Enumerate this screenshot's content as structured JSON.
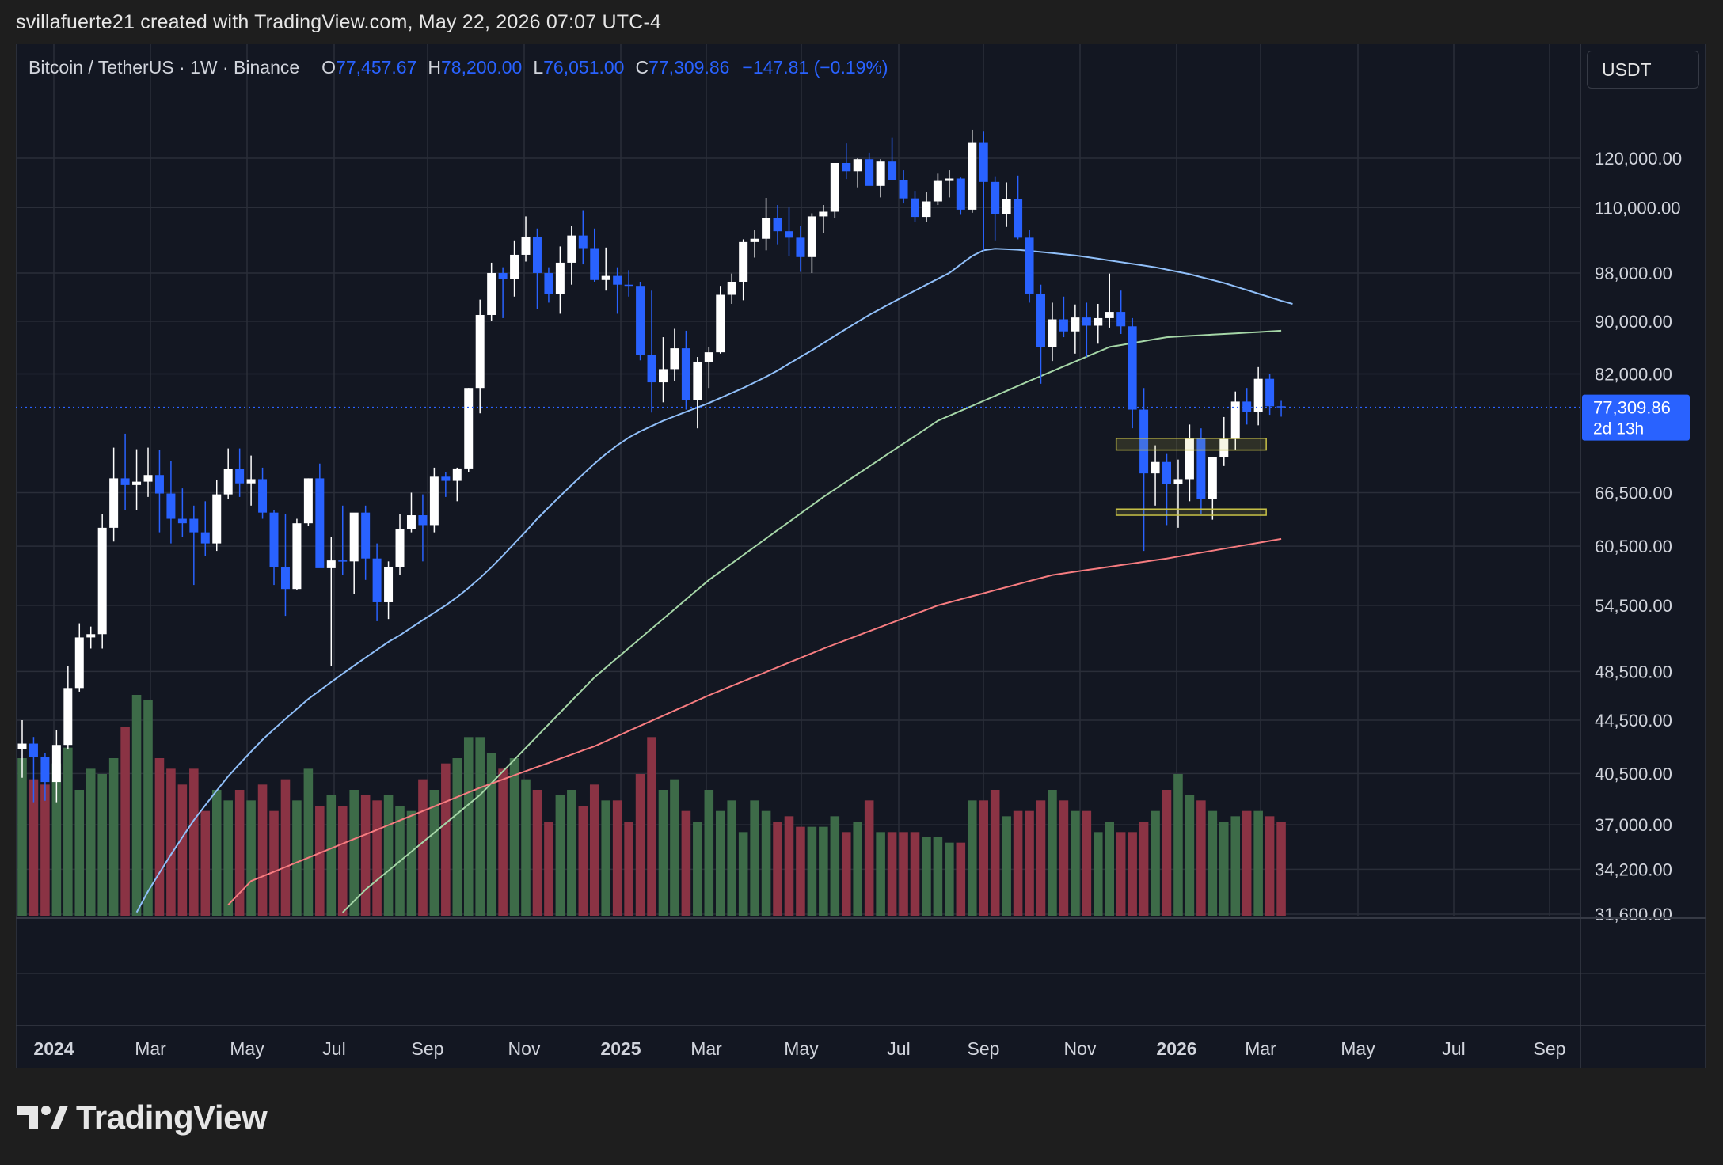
{
  "header": {
    "credit": "svillafuerte21 created with TradingView.com, May 22, 2026 07:07 UTC-4"
  },
  "legend": {
    "symbol": "Bitcoin / TetherUS · 1W · Binance",
    "o_label": "O",
    "o_value": "77,457.67",
    "h_label": "H",
    "h_value": "78,200.00",
    "l_label": "L",
    "l_value": "76,051.00",
    "c_label": "C",
    "c_value": "77,309.86",
    "change": "−147.81 (−0.19%)"
  },
  "currency_button": {
    "label": "USDT"
  },
  "last_price": {
    "value": "77,309.86",
    "countdown": "2d 13h"
  },
  "colors": {
    "background": "#131722",
    "up_candle": "#ffffff",
    "down_candle": "#2962ff",
    "volume_up": "#3d6b48",
    "volume_down": "#8a3344",
    "ma_blue": "#90bff9",
    "ma_green": "#a5d6a7",
    "ma_red": "#f77c80",
    "box": "#c9c247"
  },
  "logo": {
    "text": "TradingView",
    "icon": "tradingview-logo-icon"
  },
  "chart_data": {
    "type": "candlestick",
    "y_scale": "log",
    "ylim": [
      31600,
      135000
    ],
    "y_ticks": [
      "120,000.00",
      "110,000.00",
      "98,000.00",
      "90,000.00",
      "82,000.00",
      "66,500.00",
      "60,500.00",
      "54,500.00",
      "48,500.00",
      "44,500.00",
      "40,500.00",
      "37,000.00",
      "34,200.00",
      "31,600.00"
    ],
    "x_ticks": [
      {
        "label": "2024",
        "bold": true
      },
      {
        "label": "Mar",
        "bold": false
      },
      {
        "label": "May",
        "bold": false
      },
      {
        "label": "Jul",
        "bold": false
      },
      {
        "label": "Sep",
        "bold": false
      },
      {
        "label": "Nov",
        "bold": false
      },
      {
        "label": "2025",
        "bold": true
      },
      {
        "label": "Mar",
        "bold": false
      },
      {
        "label": "May",
        "bold": false
      },
      {
        "label": "Jul",
        "bold": false
      },
      {
        "label": "Sep",
        "bold": false
      },
      {
        "label": "Nov",
        "bold": false
      },
      {
        "label": "2026",
        "bold": true
      },
      {
        "label": "Mar",
        "bold": false
      },
      {
        "label": "May",
        "bold": false
      },
      {
        "label": "Jul",
        "bold": false
      },
      {
        "label": "Sep",
        "bold": false
      }
    ],
    "grid": true,
    "candles_weekly": [
      [
        42300,
        44500,
        40200,
        42700
      ],
      [
        42700,
        43200,
        38500,
        41700
      ],
      [
        41700,
        42000,
        38600,
        39900
      ],
      [
        39900,
        43700,
        38500,
        42600
      ],
      [
        42600,
        49000,
        42300,
        47100
      ],
      [
        47100,
        52800,
        46800,
        51500
      ],
      [
        51500,
        52500,
        50500,
        51800
      ],
      [
        51800,
        64000,
        50500,
        62500
      ],
      [
        62500,
        72000,
        61000,
        68200
      ],
      [
        68200,
        73800,
        64500,
        67400
      ],
      [
        67400,
        71800,
        64500,
        67800
      ],
      [
        67800,
        72000,
        66000,
        68600
      ],
      [
        68600,
        71700,
        62000,
        66400
      ],
      [
        66400,
        70300,
        60800,
        63500
      ],
      [
        63500,
        67000,
        61500,
        63000
      ],
      [
        63500,
        65000,
        56500,
        62000
      ],
      [
        62000,
        65500,
        59500,
        60800
      ],
      [
        60800,
        68000,
        60000,
        66300
      ],
      [
        66300,
        71900,
        65800,
        69300
      ],
      [
        69300,
        71900,
        66000,
        67600
      ],
      [
        67600,
        71000,
        65000,
        68100
      ],
      [
        68100,
        69500,
        63500,
        64200
      ],
      [
        64200,
        64500,
        56500,
        58300
      ],
      [
        58300,
        64000,
        53500,
        56100
      ],
      [
        56100,
        63500,
        56000,
        63000
      ],
      [
        63000,
        68200,
        62700,
        68200
      ],
      [
        68200,
        70000,
        63500,
        58200
      ],
      [
        58200,
        61500,
        49000,
        59000
      ],
      [
        59000,
        65000,
        57500,
        58900
      ],
      [
        58900,
        64000,
        55600,
        64200
      ],
      [
        64200,
        65000,
        57000,
        59200
      ],
      [
        59200,
        60800,
        53000,
        54800
      ],
      [
        54800,
        58900,
        53200,
        58300
      ],
      [
        58300,
        64000,
        57500,
        62400
      ],
      [
        62400,
        66500,
        62000,
        63900
      ],
      [
        63900,
        66300,
        58900,
        62800
      ],
      [
        62800,
        69500,
        62000,
        68400
      ],
      [
        68400,
        69000,
        66000,
        67900
      ],
      [
        67900,
        69500,
        65500,
        69400
      ],
      [
        69400,
        80000,
        69000,
        80000
      ],
      [
        80000,
        93500,
        76500,
        91000
      ],
      [
        91000,
        99800,
        90000,
        98000
      ],
      [
        98000,
        99000,
        90500,
        97000
      ],
      [
        97000,
        103800,
        94000,
        101200
      ],
      [
        101200,
        108300,
        100000,
        104500
      ],
      [
        104500,
        106000,
        92000,
        98000
      ],
      [
        98000,
        99000,
        93000,
        94400
      ],
      [
        94400,
        102700,
        91200,
        99800
      ],
      [
        99800,
        106500,
        96000,
        104700
      ],
      [
        104700,
        109500,
        99500,
        102400
      ],
      [
        102400,
        106000,
        96500,
        96800
      ],
      [
        96800,
        102500,
        95000,
        97500
      ],
      [
        97500,
        99000,
        91200,
        96000
      ],
      [
        96000,
        98500,
        94000,
        95800
      ],
      [
        95800,
        96500,
        84000,
        84800
      ],
      [
        84800,
        95000,
        76600,
        80800
      ],
      [
        80800,
        87500,
        78000,
        82700
      ],
      [
        82700,
        88800,
        81000,
        85800
      ],
      [
        85800,
        88500,
        77000,
        78300
      ],
      [
        78300,
        84500,
        74500,
        83800
      ],
      [
        83800,
        86000,
        80000,
        85200
      ],
      [
        85200,
        95800,
        85000,
        94300
      ],
      [
        94300,
        97900,
        92800,
        96500
      ],
      [
        96500,
        104000,
        93400,
        103500
      ],
      [
        103500,
        105800,
        100700,
        104100
      ],
      [
        104100,
        111900,
        102000,
        108000
      ],
      [
        108000,
        110500,
        103100,
        105500
      ],
      [
        105500,
        110000,
        101000,
        104300
      ],
      [
        104300,
        106500,
        98200,
        100800
      ],
      [
        100800,
        108900,
        98000,
        108300
      ],
      [
        108300,
        110500,
        105200,
        109200
      ],
      [
        109200,
        119000,
        108000,
        119000
      ],
      [
        119000,
        123200,
        115700,
        117300
      ],
      [
        117300,
        120000,
        114000,
        119800
      ],
      [
        119800,
        121200,
        115000,
        114300
      ],
      [
        114300,
        119800,
        112000,
        119300
      ],
      [
        119300,
        124500,
        117000,
        115500
      ],
      [
        115500,
        117500,
        110800,
        111800
      ],
      [
        111800,
        113300,
        107300,
        108200
      ],
      [
        108200,
        113000,
        107300,
        111200
      ],
      [
        111200,
        116800,
        110500,
        115300
      ],
      [
        115300,
        117500,
        112000,
        115800
      ],
      [
        115800,
        116000,
        108600,
        109600
      ],
      [
        109600,
        126200,
        109000,
        123300
      ],
      [
        123300,
        125800,
        102000,
        115100
      ],
      [
        115100,
        116100,
        103800,
        108700
      ],
      [
        108700,
        115000,
        106300,
        111700
      ],
      [
        111700,
        116400,
        104000,
        104300
      ],
      [
        104300,
        105700,
        93000,
        94500
      ],
      [
        94500,
        96000,
        80600,
        86000
      ],
      [
        86000,
        93000,
        83900,
        90300
      ],
      [
        90300,
        94000,
        87500,
        88400
      ],
      [
        88400,
        92700,
        85000,
        90600
      ],
      [
        90600,
        93000,
        84500,
        89300
      ],
      [
        89300,
        92800,
        86500,
        90500
      ],
      [
        90500,
        97900,
        89000,
        91500
      ],
      [
        91500,
        95000,
        88000,
        89200
      ],
      [
        89200,
        90500,
        74500,
        77000
      ],
      [
        77000,
        80000,
        60000,
        68800
      ],
      [
        68800,
        72300,
        65000,
        70200
      ],
      [
        70200,
        71200,
        62800,
        67500
      ],
      [
        67500,
        70500,
        62500,
        68100
      ],
      [
        68100,
        75000,
        65500,
        73200
      ],
      [
        73200,
        74500,
        64000,
        65800
      ],
      [
        65800,
        70000,
        63400,
        70800
      ],
      [
        70800,
        76000,
        69700,
        73100
      ],
      [
        73100,
        79500,
        71700,
        78100
      ],
      [
        78100,
        80000,
        75000,
        76700
      ],
      [
        76700,
        83000,
        74900,
        81300
      ],
      [
        81300,
        82000,
        76300,
        77460
      ],
      [
        77460,
        78200,
        76050,
        77310
      ]
    ],
    "volume_weekly": [
      30,
      26,
      25,
      29,
      32,
      24,
      28,
      27,
      30,
      36,
      42,
      41,
      30,
      28,
      25,
      28,
      20,
      24,
      22,
      24,
      22,
      25,
      20,
      26,
      22,
      28,
      21,
      23,
      21,
      24,
      23,
      22,
      23,
      21,
      20,
      26,
      24,
      29,
      30,
      34,
      34,
      31,
      28,
      30,
      26,
      24,
      18,
      23,
      24,
      21,
      25,
      22,
      22,
      18,
      27,
      34,
      24,
      26,
      20,
      18,
      24,
      20,
      22,
      16,
      22,
      20,
      18,
      19,
      17,
      17,
      17,
      19,
      16,
      18,
      22,
      16,
      16,
      16,
      16,
      15,
      15,
      14,
      14,
      22,
      22,
      24,
      19,
      20,
      20,
      22,
      24,
      22,
      20,
      20,
      16,
      18,
      16,
      16,
      18,
      20,
      24,
      27,
      23,
      22,
      20,
      18,
      19,
      20,
      20,
      19,
      18,
      15
    ],
    "ma_blue_weekly": [
      22900,
      23600,
      24300,
      25100,
      25900,
      26700,
      27600,
      28500,
      29500,
      30600,
      31700,
      32900,
      34000,
      35100,
      36200,
      37300,
      38300,
      39300,
      40300,
      41200,
      42100,
      43000,
      43800,
      44600,
      45400,
      46200,
      46900,
      47600,
      48300,
      49000,
      49700,
      50400,
      51100,
      51700,
      52400,
      53100,
      53800,
      54500,
      55300,
      56200,
      57200,
      58300,
      59500,
      60800,
      62100,
      63500,
      64800,
      66100,
      67400,
      68700,
      70000,
      71200,
      72300,
      73300,
      74100,
      74800,
      75500,
      76100,
      76700,
      77300,
      77900,
      78600,
      79300,
      80000,
      80800,
      81600,
      82500,
      83500,
      84500,
      85500,
      86600,
      87700,
      88800,
      89900,
      91000,
      92000,
      93000,
      94000,
      95000,
      96000,
      97000,
      98000,
      99500,
      101000,
      102000,
      102300,
      102200,
      102100,
      101900,
      101700,
      101500,
      101300,
      101100,
      100800,
      100500,
      100200,
      99900,
      99600,
      99300,
      99000,
      98600,
      98200,
      97800,
      97300,
      96800,
      96300,
      95700,
      95100,
      94500,
      93900,
      93300,
      92800
    ],
    "ma_green_weekly": [
      null,
      null,
      null,
      null,
      null,
      null,
      null,
      null,
      null,
      null,
      null,
      null,
      null,
      null,
      null,
      null,
      null,
      null,
      null,
      null,
      null,
      null,
      null,
      null,
      null,
      null,
      null,
      null,
      null,
      null,
      null,
      null,
      null,
      null,
      null,
      null,
      null,
      null,
      null,
      null,
      null,
      null,
      null,
      null,
      null,
      null,
      null,
      null,
      null,
      null,
      null,
      null,
      null,
      null,
      null,
      null,
      null,
      null,
      null,
      null,
      null,
      null,
      null,
      null,
      null,
      null,
      null,
      null,
      null,
      null,
      null,
      null,
      null,
      null,
      null,
      null,
      null,
      null,
      null,
      null,
      null,
      null,
      null,
      null,
      null,
      null,
      null,
      null,
      null,
      null,
      null,
      null,
      null,
      null,
      null,
      null,
      null,
      null,
      null,
      null,
      null,
      null,
      null,
      null,
      null,
      null,
      null,
      null,
      null,
      null,
      null,
      null
    ],
    "ma_red_weekly": [
      null
    ]
  }
}
